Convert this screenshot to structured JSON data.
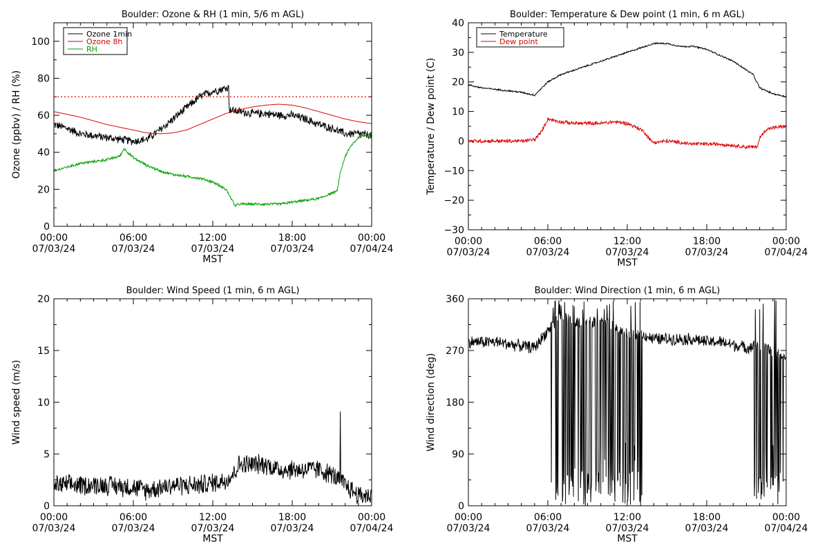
{
  "chart_data": [
    {
      "type": "line",
      "title": "Boulder: Ozone & RH (1 min, 5/6 m AGL)",
      "xlabel": "MST",
      "ylabel": "Ozone (ppbv) / RH (%)",
      "xlim": [
        "07/03/24 00:00",
        "07/04/24 00:00"
      ],
      "x_ticks": [
        {
          "time": "00:00",
          "date": "07/03/24"
        },
        {
          "time": "06:00",
          "date": "07/03/24"
        },
        {
          "time": "12:00",
          "date": "07/03/24"
        },
        {
          "time": "18:00",
          "date": "07/03/24"
        },
        {
          "time": "00:00",
          "date": "07/04/24"
        }
      ],
      "ylim": [
        0,
        110
      ],
      "y_ticks": [
        "0",
        "20",
        "40",
        "60",
        "80",
        "100"
      ],
      "legend_position": "top-left",
      "reference_lines": [
        {
          "y": 70,
          "color": "#dd0000",
          "style": "dotted"
        }
      ],
      "series": [
        {
          "name": "Ozone 1min",
          "color": "#000000",
          "noise": 2.5,
          "x_hours": [
            0,
            1,
            2,
            3,
            4,
            5,
            6,
            7,
            8,
            9,
            10,
            11,
            12,
            13.2,
            13.25,
            14,
            15,
            16,
            17,
            18,
            19,
            20,
            21,
            22,
            23,
            24
          ],
          "values": [
            55,
            53,
            50,
            49,
            48,
            47,
            46,
            47,
            52,
            58,
            64,
            70,
            73,
            75,
            63,
            62,
            61,
            61,
            60,
            60,
            58,
            55,
            53,
            50,
            50,
            49
          ]
        },
        {
          "name": "Ozone 8h",
          "color": "#dd0000",
          "noise": 0,
          "x_hours": [
            0,
            2,
            4,
            6,
            7,
            8,
            9,
            10,
            11,
            12,
            13,
            14,
            15,
            16,
            17,
            18,
            19,
            20,
            21,
            22,
            23,
            24
          ],
          "values": [
            62,
            59,
            55,
            52,
            50.5,
            50,
            50.5,
            52,
            55,
            58,
            61,
            63,
            64.5,
            65.5,
            66,
            65.5,
            64,
            62,
            60,
            58,
            56.5,
            55.5
          ]
        },
        {
          "name": "RH",
          "color": "#00a000",
          "noise": 0.8,
          "x_hours": [
            0,
            1,
            2,
            3,
            4,
            5,
            5.3,
            6,
            7,
            8,
            9,
            10,
            11,
            12,
            13,
            13.7,
            14,
            15,
            16,
            17,
            18,
            19,
            20,
            21,
            21.4,
            21.6,
            22,
            22.5,
            23,
            24
          ],
          "values": [
            30,
            32,
            34,
            35,
            36,
            38,
            42,
            37,
            33,
            30,
            28,
            27,
            26,
            24,
            20,
            11,
            12,
            12,
            12,
            12,
            13,
            14,
            15,
            18,
            19,
            28,
            38,
            44,
            48,
            50
          ]
        }
      ]
    },
    {
      "type": "line",
      "title": "Boulder: Temperature & Dew point (1 min, 6 m AGL)",
      "xlabel": "MST",
      "ylabel": "Temperature / Dew point (C)",
      "xlim": [
        "07/03/24 00:00",
        "07/04/24 00:00"
      ],
      "x_ticks": [
        {
          "time": "00:00",
          "date": "07/03/24"
        },
        {
          "time": "06:00",
          "date": "07/03/24"
        },
        {
          "time": "12:00",
          "date": "07/03/24"
        },
        {
          "time": "18:00",
          "date": "07/03/24"
        },
        {
          "time": "00:00",
          "date": "07/04/24"
        }
      ],
      "ylim": [
        -30,
        40
      ],
      "y_ticks": [
        "−30",
        "−20",
        "−10",
        "0",
        "10",
        "20",
        "30",
        "40"
      ],
      "legend_position": "top-left",
      "series": [
        {
          "name": "Temperature",
          "color": "#000000",
          "noise": 0.3,
          "x_hours": [
            0,
            1,
            2,
            3,
            4,
            5,
            6,
            7,
            8,
            9,
            10,
            11,
            12,
            13,
            14,
            15,
            16,
            17,
            18,
            19,
            20,
            21,
            21.5,
            22,
            23,
            24
          ],
          "values": [
            19,
            18,
            17.5,
            17,
            16.5,
            15.5,
            20,
            22.5,
            24,
            25.5,
            27,
            28.5,
            30,
            31.5,
            33,
            33,
            32,
            32,
            31,
            29,
            27,
            24,
            22.5,
            18,
            16,
            15
          ]
        },
        {
          "name": "Dew point",
          "color": "#dd0000",
          "noise": 0.7,
          "x_hours": [
            0,
            1,
            2,
            3,
            4,
            5,
            5.5,
            6,
            6.5,
            7,
            8,
            9,
            10,
            11,
            12,
            13,
            13.3,
            13.8,
            14,
            15,
            16,
            17,
            18,
            19,
            20,
            21,
            21.8,
            22,
            22.5,
            23,
            24
          ],
          "values": [
            0,
            0,
            0,
            0,
            0,
            0.5,
            3,
            7.5,
            7,
            6.5,
            6,
            6,
            6,
            6.5,
            6,
            4,
            3,
            0,
            -0.5,
            0,
            -0.5,
            -1,
            -1,
            -1,
            -1.5,
            -2,
            -2,
            1,
            4,
            4.5,
            5
          ]
        }
      ]
    },
    {
      "type": "line",
      "title": "Boulder: Wind Speed (1 min, 6 m AGL)",
      "xlabel": "MST",
      "ylabel": "Wind speed (m/s)",
      "xlim": [
        "07/03/24 00:00",
        "07/04/24 00:00"
      ],
      "x_ticks": [
        {
          "time": "00:00",
          "date": "07/03/24"
        },
        {
          "time": "06:00",
          "date": "07/03/24"
        },
        {
          "time": "12:00",
          "date": "07/03/24"
        },
        {
          "time": "18:00",
          "date": "07/03/24"
        },
        {
          "time": "00:00",
          "date": "07/04/24"
        }
      ],
      "ylim": [
        0,
        20
      ],
      "y_ticks": [
        "0",
        "5",
        "10",
        "15",
        "20"
      ],
      "series": [
        {
          "name": "",
          "color": "#000000",
          "noise": 1.1,
          "floor": 0,
          "x_hours": [
            0,
            2,
            4,
            6,
            7,
            8,
            9,
            10,
            11,
            12,
            13,
            13.5,
            14,
            15,
            16,
            17,
            18,
            19,
            20,
            21,
            21.5,
            22,
            23,
            24
          ],
          "values": [
            2,
            2,
            2,
            1.8,
            1.5,
            1.8,
            2,
            2,
            2,
            2.2,
            2.5,
            3,
            4,
            4,
            4,
            3.5,
            3.5,
            3.5,
            3.5,
            3,
            2.5,
            2,
            1,
            1
          ]
        }
      ],
      "annotations": [
        {
          "x_hour": 21.65,
          "value": 9.1
        }
      ]
    },
    {
      "type": "line",
      "title": "Boulder: Wind Direction (1 min, 6 m AGL)",
      "xlabel": "MST",
      "ylabel": "Wind direction (deg)",
      "xlim": [
        "07/03/24 00:00",
        "07/04/24 00:00"
      ],
      "x_ticks": [
        {
          "time": "00:00",
          "date": "07/03/24"
        },
        {
          "time": "06:00",
          "date": "07/03/24"
        },
        {
          "time": "12:00",
          "date": "07/03/24"
        },
        {
          "time": "18:00",
          "date": "07/03/24"
        },
        {
          "time": "00:00",
          "date": "07/04/24"
        }
      ],
      "ylim": [
        0,
        360
      ],
      "y_ticks": [
        "0",
        "90",
        "180",
        "270",
        "360"
      ],
      "series": [
        {
          "name": "",
          "color": "#000000",
          "noise": 12,
          "floor": 0,
          "ceil": 360,
          "x_hours": [
            0,
            2,
            4,
            5,
            6,
            7,
            8,
            9,
            10,
            11,
            12,
            13,
            14,
            15,
            16,
            17,
            18,
            19,
            20,
            21,
            22,
            23,
            24
          ],
          "values": [
            285,
            285,
            278,
            275,
            305,
            330,
            320,
            320,
            320,
            310,
            300,
            300,
            290,
            290,
            290,
            290,
            285,
            285,
            280,
            275,
            280,
            270,
            255
          ],
          "wrap_bands": [
            [
              6.2,
              13.2
            ],
            [
              21.6,
              23.9
            ]
          ]
        }
      ]
    }
  ]
}
